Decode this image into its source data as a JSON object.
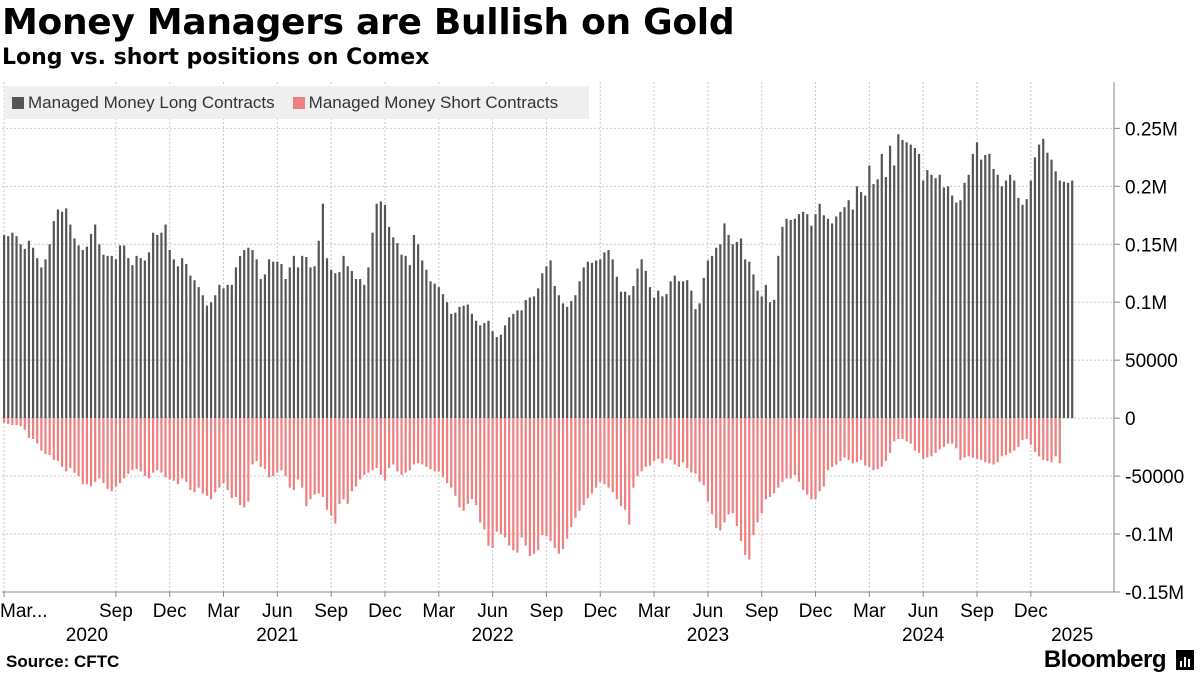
{
  "title": "Money Managers are Bullish on Gold",
  "subtitle": "Long vs. short positions on Comex",
  "source": "Source: CFTC",
  "brand": "Bloomberg",
  "colors": {
    "long": "#555555",
    "short": "#f08080",
    "grid": "#c8c8c8",
    "axis": "#888888"
  },
  "chart_data": {
    "type": "bar",
    "title": "Money Managers are Bullish on Gold",
    "subtitle": "Long vs. short positions on Comex",
    "legend": [
      {
        "name": "Managed Money Long Contracts",
        "color": "#555555"
      },
      {
        "name": "Managed Money Short Contracts",
        "color": "#f08080"
      }
    ],
    "legend_position": "top-left",
    "grid": true,
    "ylim": [
      -150000,
      290000
    ],
    "y_ticks": [
      {
        "value": 250000,
        "label": "0.25M"
      },
      {
        "value": 200000,
        "label": "0.2M"
      },
      {
        "value": 150000,
        "label": "0.15M"
      },
      {
        "value": 100000,
        "label": "0.1M"
      },
      {
        "value": 50000,
        "label": "50000"
      },
      {
        "value": 0,
        "label": "0"
      },
      {
        "value": -50000,
        "label": "-50000"
      },
      {
        "value": -100000,
        "label": "-0.1M"
      },
      {
        "value": -150000,
        "label": "-0.15M"
      }
    ],
    "x_range_index": [
      0,
      263
    ],
    "x_ticks": [
      {
        "index": 0,
        "label": "Mar..."
      },
      {
        "index": 27,
        "label": "Sep"
      },
      {
        "index": 40,
        "label": "Dec"
      },
      {
        "index": 53,
        "label": "Mar"
      },
      {
        "index": 66,
        "label": "Jun"
      },
      {
        "index": 79,
        "label": "Sep"
      },
      {
        "index": 92,
        "label": "Dec"
      },
      {
        "index": 105,
        "label": "Mar"
      },
      {
        "index": 118,
        "label": "Jun"
      },
      {
        "index": 131,
        "label": "Sep"
      },
      {
        "index": 144,
        "label": "Dec"
      },
      {
        "index": 157,
        "label": "Mar"
      },
      {
        "index": 170,
        "label": "Jun"
      },
      {
        "index": 183,
        "label": "Sep"
      },
      {
        "index": 196,
        "label": "Dec"
      },
      {
        "index": 209,
        "label": "Mar"
      },
      {
        "index": 222,
        "label": "Jun"
      },
      {
        "index": 235,
        "label": "Sep"
      },
      {
        "index": 248,
        "label": "Dec"
      }
    ],
    "year_labels": [
      {
        "index": 20,
        "label": "2020"
      },
      {
        "index": 66,
        "label": "2021"
      },
      {
        "index": 118,
        "label": "2022"
      },
      {
        "index": 170,
        "label": "2023"
      },
      {
        "index": 222,
        "label": "2024"
      },
      {
        "index": 258,
        "label": "2025"
      }
    ],
    "series": [
      {
        "name": "Managed Money Long Contracts",
        "values": [
          158000,
          157000,
          160000,
          157000,
          150000,
          146000,
          153000,
          147000,
          138000,
          130000,
          137000,
          150000,
          170000,
          180000,
          178000,
          181000,
          167000,
          155000,
          149000,
          145000,
          148000,
          159000,
          167000,
          150000,
          141000,
          140000,
          140000,
          137000,
          149000,
          149000,
          138000,
          132000,
          140000,
          138000,
          136000,
          143000,
          160000,
          158000,
          160000,
          167000,
          145000,
          137000,
          131000,
          138000,
          133000,
          123000,
          119000,
          113000,
          106000,
          97000,
          100000,
          106000,
          115000,
          112000,
          115000,
          115000,
          130000,
          140000,
          145000,
          147000,
          145000,
          137000,
          120000,
          124000,
          137000,
          135000,
          135000,
          133000,
          120000,
          130000,
          140000,
          130000,
          140000,
          139000,
          130000,
          131000,
          153000,
          185000,
          138000,
          128000,
          125000,
          126000,
          140000,
          131000,
          127000,
          120000,
          120000,
          115000,
          130000,
          160000,
          185000,
          187000,
          184000,
          165000,
          156000,
          151000,
          141000,
          140000,
          132000,
          158000,
          150000,
          136000,
          128000,
          118000,
          116000,
          113000,
          107000,
          100000,
          90000,
          91000,
          96000,
          97000,
          98000,
          90000,
          84000,
          80000,
          82000,
          84000,
          75000,
          70000,
          72000,
          80000,
          87000,
          90000,
          93000,
          93000,
          102000,
          104000,
          105000,
          112000,
          125000,
          131000,
          136000,
          114000,
          106000,
          99000,
          96000,
          101000,
          106000,
          118000,
          130000,
          135000,
          134000,
          136000,
          137000,
          143000,
          145000,
          137000,
          122000,
          109000,
          109000,
          106000,
          114000,
          129000,
          137000,
          127000,
          113000,
          104000,
          110000,
          105000,
          107000,
          118000,
          123000,
          118000,
          118000,
          119000,
          110000,
          94000,
          99000,
          121000,
          136000,
          140000,
          147000,
          150000,
          168000,
          158000,
          150000,
          152000,
          155000,
          137000,
          135000,
          124000,
          110000,
          105000,
          115000,
          100000,
          102000,
          140000,
          165000,
          172000,
          171000,
          172000,
          176000,
          178000,
          176000,
          166000,
          176000,
          185000,
          175000,
          172000,
          168000,
          174000,
          178000,
          182000,
          188000,
          180000,
          200000,
          195000,
          192000,
          218000,
          202000,
          206000,
          228000,
          208000,
          235000,
          218000,
          245000,
          240000,
          238000,
          236000,
          233000,
          228000,
          205000,
          214000,
          210000,
          207000,
          210000,
          199000,
          200000,
          192000,
          186000,
          188000,
          203000,
          210000,
          228000,
          238000,
          223000,
          227000,
          228000,
          215000,
          210000,
          200000,
          205000,
          210000,
          205000,
          190000,
          184000,
          189000,
          205000,
          225000,
          236000,
          241000,
          229000,
          223000,
          213000,
          205000,
          204000,
          203000,
          205000
        ],
        "color": "#555555"
      },
      {
        "name": "Managed Money Short Contracts",
        "values": [
          -4000,
          -5000,
          -6000,
          -6000,
          -7000,
          -10000,
          -17000,
          -18000,
          -22000,
          -28000,
          -31000,
          -32000,
          -36000,
          -37000,
          -42000,
          -46000,
          -43000,
          -47000,
          -50000,
          -57000,
          -57000,
          -59000,
          -55000,
          -52000,
          -56000,
          -61000,
          -63000,
          -59000,
          -56000,
          -52000,
          -48000,
          -45000,
          -44000,
          -46000,
          -50000,
          -52000,
          -47000,
          -45000,
          -47000,
          -51000,
          -53000,
          -54000,
          -57000,
          -52000,
          -55000,
          -62000,
          -64000,
          -60000,
          -65000,
          -67000,
          -70000,
          -64000,
          -60000,
          -56000,
          -62000,
          -69000,
          -68000,
          -75000,
          -77000,
          -72000,
          -40000,
          -37000,
          -42000,
          -44000,
          -51000,
          -50000,
          -47000,
          -45000,
          -50000,
          -60000,
          -62000,
          -53000,
          -60000,
          -76000,
          -70000,
          -66000,
          -65000,
          -68000,
          -79000,
          -84000,
          -91000,
          -74000,
          -70000,
          -74000,
          -63000,
          -59000,
          -53000,
          -49000,
          -47000,
          -45000,
          -43000,
          -49000,
          -54000,
          -43000,
          -40000,
          -46000,
          -49000,
          -47000,
          -45000,
          -40000,
          -39000,
          -40000,
          -42000,
          -44000,
          -46000,
          -46000,
          -51000,
          -56000,
          -60000,
          -67000,
          -77000,
          -80000,
          -74000,
          -70000,
          -75000,
          -90000,
          -96000,
          -110000,
          -112000,
          -98000,
          -100000,
          -103000,
          -110000,
          -114000,
          -116000,
          -103000,
          -110000,
          -119000,
          -117000,
          -114000,
          -101000,
          -102000,
          -106000,
          -112000,
          -117000,
          -113000,
          -104000,
          -94000,
          -86000,
          -80000,
          -75000,
          -69000,
          -65000,
          -60000,
          -55000,
          -57000,
          -60000,
          -64000,
          -70000,
          -76000,
          -79000,
          -92000,
          -60000,
          -50000,
          -46000,
          -42000,
          -41000,
          -37000,
          -35000,
          -39000,
          -35000,
          -36000,
          -40000,
          -42000,
          -38000,
          -43000,
          -47000,
          -48000,
          -55000,
          -58000,
          -72000,
          -83000,
          -95000,
          -97000,
          -90000,
          -83000,
          -82000,
          -93000,
          -106000,
          -118000,
          -122000,
          -101000,
          -90000,
          -82000,
          -70000,
          -68000,
          -65000,
          -60000,
          -55000,
          -52000,
          -52000,
          -49000,
          -55000,
          -62000,
          -66000,
          -70000,
          -70000,
          -63000,
          -59000,
          -45000,
          -42000,
          -40000,
          -37000,
          -34000,
          -36000,
          -39000,
          -38000,
          -36000,
          -41000,
          -42000,
          -45000,
          -44000,
          -42000,
          -37000,
          -30000,
          -20000,
          -18000,
          -18000,
          -20000,
          -22000,
          -28000,
          -30000,
          -35000,
          -34000,
          -33000,
          -30000,
          -27000,
          -25000,
          -22000,
          -22000,
          -26000,
          -36000,
          -34000,
          -33000,
          -34000,
          -35000,
          -36000,
          -38000,
          -39000,
          -40000,
          -38000,
          -33000,
          -32000,
          -30000,
          -28000,
          -25000,
          -19000,
          -18000,
          -23000,
          -29000,
          -33000,
          -36000,
          -37000,
          -38000,
          -33000,
          -39000
        ],
        "color": "#f08080"
      }
    ]
  }
}
